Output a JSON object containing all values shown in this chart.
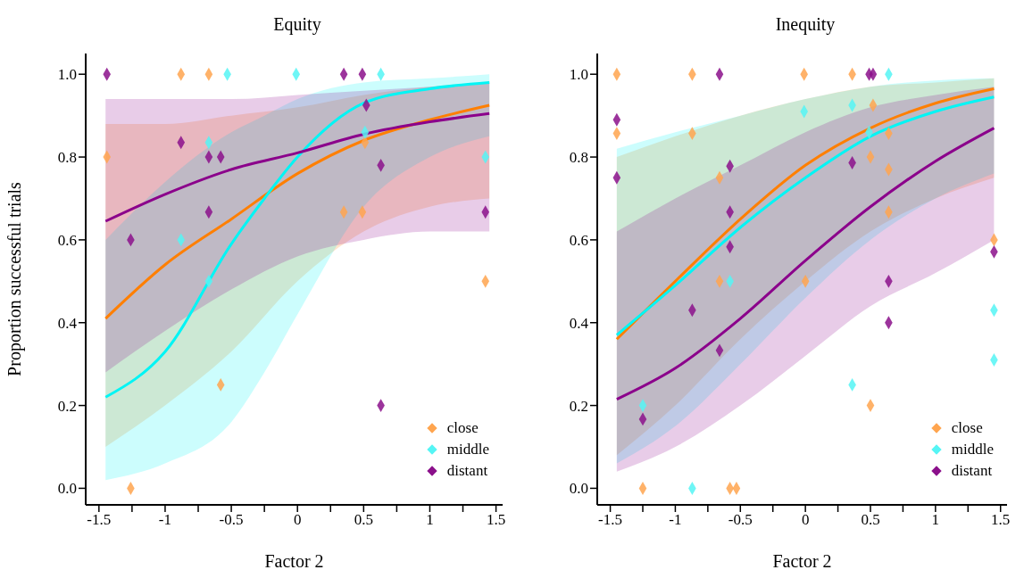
{
  "chart_data": [
    {
      "type": "scatter",
      "title": "Equity",
      "xlabel": "Factor 2",
      "ylabel": "Proportion successful trials",
      "xlim": [
        -1.6,
        1.55
      ],
      "ylim": [
        -0.04,
        1.05
      ],
      "xticks": [
        -1.5,
        {
          "value": -1.25,
          "label": null
        },
        -1,
        {
          "value": -0.75,
          "label": null
        },
        -0.5,
        {
          "value": -0.25,
          "label": null
        },
        0,
        {
          "value": 0.25,
          "label": null
        },
        0.5,
        {
          "value": 0.75,
          "label": null
        },
        1,
        {
          "value": 1.25,
          "label": null
        },
        1.5
      ],
      "yticks": [
        {
          "value": 0,
          "label": "0.0"
        },
        {
          "value": 0.2,
          "label": "0.2"
        },
        {
          "value": 0.4,
          "label": "0.4"
        },
        {
          "value": 0.6,
          "label": "0.6"
        },
        {
          "value": 0.8,
          "label": "0.8"
        },
        {
          "value": 1,
          "label": "1.0"
        }
      ],
      "legend": "bottom right",
      "marker": "diamond",
      "series": [
        {
          "type": "line",
          "marker": "none",
          "color": "#ff7f00",
          "x": [
            -1.45,
            -1,
            -0.5,
            0,
            0.5,
            1,
            1.45
          ],
          "values": [
            0.41,
            0.54,
            0.65,
            0.76,
            0.84,
            0.89,
            0.925
          ],
          "lower": [
            0.1,
            0.2,
            0.33,
            0.5,
            0.62,
            0.68,
            0.7
          ],
          "upper": [
            0.88,
            0.88,
            0.9,
            0.92,
            0.95,
            0.97,
            0.98
          ]
        },
        {
          "type": "line",
          "marker": "none",
          "color": "#00f5f5",
          "x": [
            -1.45,
            -1,
            -0.5,
            -0.25,
            0,
            0.5,
            1,
            1.45
          ],
          "values": [
            0.22,
            0.33,
            0.59,
            0.7,
            0.8,
            0.93,
            0.965,
            0.98
          ],
          "lower": [
            0.02,
            0.06,
            0.16,
            0.28,
            0.42,
            0.68,
            0.8,
            0.85
          ],
          "upper": [
            0.6,
            0.74,
            0.86,
            0.9,
            0.94,
            0.98,
            0.99,
            1
          ]
        },
        {
          "type": "line",
          "marker": "none",
          "color": "#8b008b",
          "x": [
            -1.45,
            -1,
            -0.5,
            0,
            0.5,
            1,
            1.45
          ],
          "values": [
            0.645,
            0.71,
            0.77,
            0.81,
            0.855,
            0.885,
            0.905
          ],
          "lower": [
            0.28,
            0.38,
            0.48,
            0.56,
            0.6,
            0.62,
            0.62
          ],
          "upper": [
            0.94,
            0.94,
            0.94,
            0.95,
            0.96,
            0.97,
            0.98
          ]
        },
        {
          "name": "close",
          "color": "#ffa54f",
          "x": [
            -1.44,
            -0.88,
            -0.67,
            0.51,
            0.35,
            0.49,
            1.42,
            -0.58,
            -1.26
          ],
          "values": [
            0.8,
            1,
            1,
            0.835,
            0.667,
            0.667,
            0.5,
            0.25,
            0
          ]
        },
        {
          "name": "middle",
          "color": "#55f5f5",
          "x": [
            -0.53,
            -0.01,
            0.63,
            -0.67,
            0.51,
            1.42,
            -0.88,
            -0.67
          ],
          "values": [
            1,
            1,
            1,
            0.835,
            0.86,
            0.8,
            0.6,
            0.5
          ]
        },
        {
          "name": "distant",
          "color": "#8b108b",
          "x": [
            -1.44,
            0.35,
            0.49,
            0.52,
            -0.88,
            -0.67,
            -0.58,
            0.63,
            -0.67,
            1.42,
            -1.26,
            0.63
          ],
          "values": [
            1,
            1,
            1,
            0.925,
            0.835,
            0.8,
            0.8,
            0.78,
            0.667,
            0.667,
            0.6,
            0.2
          ]
        }
      ]
    },
    {
      "type": "scatter",
      "title": "Inequity",
      "xlabel": "Factor 2",
      "xlim": [
        -1.6,
        1.55
      ],
      "ylim": [
        -0.04,
        1.05
      ],
      "xticks": [
        -1.5,
        {
          "value": -1.25,
          "label": null
        },
        -1,
        {
          "value": -0.75,
          "label": null
        },
        -0.5,
        {
          "value": -0.25,
          "label": null
        },
        0,
        {
          "value": 0.25,
          "label": null
        },
        0.5,
        {
          "value": 0.75,
          "label": null
        },
        1,
        {
          "value": 1.25,
          "label": null
        },
        1.5
      ],
      "yticks": [
        {
          "value": 0,
          "label": "0.0"
        },
        {
          "value": 0.2,
          "label": "0.2"
        },
        {
          "value": 0.4,
          "label": "0.4"
        },
        {
          "value": 0.6,
          "label": "0.6"
        },
        {
          "value": 0.8,
          "label": "0.8"
        },
        {
          "value": 1,
          "label": "1.0"
        }
      ],
      "legend": "bottom right",
      "marker": "diamond",
      "series": [
        {
          "type": "line",
          "marker": "none",
          "color": "#ff7f00",
          "x": [
            -1.45,
            -1,
            -0.5,
            0,
            0.5,
            1,
            1.45
          ],
          "values": [
            0.36,
            0.5,
            0.65,
            0.78,
            0.87,
            0.93,
            0.965
          ],
          "lower": [
            0.08,
            0.2,
            0.36,
            0.5,
            0.62,
            0.7,
            0.75
          ],
          "upper": [
            0.8,
            0.85,
            0.9,
            0.94,
            0.97,
            0.98,
            0.99
          ]
        },
        {
          "type": "line",
          "marker": "none",
          "color": "#00f5f5",
          "x": [
            -1.45,
            -1,
            -0.5,
            0,
            0.5,
            1,
            1.45
          ],
          "values": [
            0.37,
            0.49,
            0.63,
            0.75,
            0.85,
            0.91,
            0.945
          ],
          "lower": [
            0.06,
            0.15,
            0.3,
            0.46,
            0.6,
            0.7,
            0.76
          ],
          "upper": [
            0.82,
            0.86,
            0.9,
            0.94,
            0.97,
            0.985,
            0.99
          ]
        },
        {
          "type": "line",
          "marker": "none",
          "color": "#8b008b",
          "x": [
            -1.45,
            -1,
            -0.5,
            0,
            0.5,
            1,
            1.45
          ],
          "values": [
            0.215,
            0.29,
            0.41,
            0.55,
            0.68,
            0.79,
            0.87
          ],
          "lower": [
            0.04,
            0.1,
            0.2,
            0.32,
            0.44,
            0.52,
            0.6
          ],
          "upper": [
            0.62,
            0.7,
            0.78,
            0.86,
            0.92,
            0.95,
            0.97
          ]
        },
        {
          "name": "close",
          "color": "#ffa54f",
          "x": [
            -1.45,
            -0.87,
            -0.01,
            0.36,
            -1.45,
            -0.87,
            0.52,
            0.64,
            0.5,
            0.64,
            -0.66,
            0.64,
            1.45,
            -0.66,
            0,
            0.5,
            -1.25,
            -0.58,
            -0.53
          ],
          "values": [
            1,
            1,
            1,
            1,
            0.857,
            0.857,
            0.925,
            0.857,
            0.8,
            0.77,
            0.75,
            0.667,
            0.6,
            0.5,
            0.5,
            0.2,
            0,
            0,
            0
          ]
        },
        {
          "name": "middle",
          "color": "#55f5f5",
          "x": [
            0.64,
            -0.01,
            0.36,
            0.49,
            -0.58,
            1.45,
            1.45,
            0.36,
            -1.25,
            -0.87
          ],
          "values": [
            1,
            0.91,
            0.925,
            0.86,
            0.5,
            0.43,
            0.31,
            0.25,
            0.2,
            0
          ]
        },
        {
          "name": "distant",
          "color": "#8b108b",
          "x": [
            -0.66,
            0.49,
            0.52,
            -1.45,
            -0.58,
            0.36,
            -1.45,
            -0.58,
            -0.58,
            1.45,
            0.64,
            -0.87,
            0.64,
            -0.66,
            -1.25
          ],
          "values": [
            1,
            1,
            1,
            0.89,
            0.778,
            0.786,
            0.75,
            0.667,
            0.583,
            0.571,
            0.5,
            0.43,
            0.4,
            0.333,
            0.167
          ]
        }
      ]
    }
  ]
}
